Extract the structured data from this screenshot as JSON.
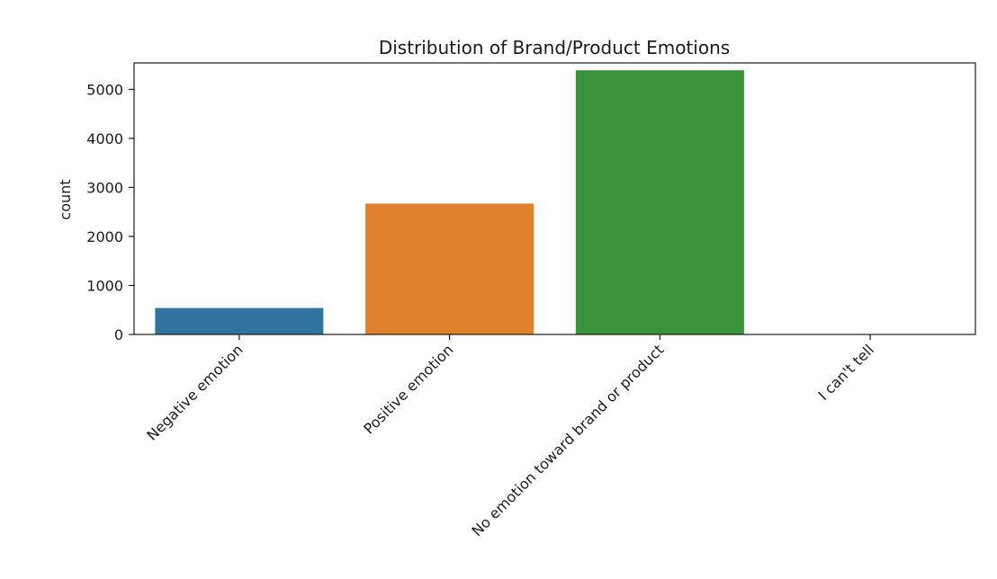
{
  "chart_data": {
    "type": "bar",
    "title": "Distribution of Brand/Product Emotions",
    "xlabel": "",
    "ylabel": "count",
    "categories": [
      "Negative emotion",
      "Positive emotion",
      "No emotion toward brand or product",
      "I can't tell"
    ],
    "values": [
      540,
      2670,
      5390,
      0
    ],
    "colors": [
      "#3274a1",
      "#e1812c",
      "#3a923a",
      "#c03d3e"
    ],
    "ylim": [
      0,
      5540
    ],
    "yticks": [
      0,
      1000,
      2000,
      3000,
      4000,
      5000
    ],
    "grid": false,
    "legend": "none"
  }
}
